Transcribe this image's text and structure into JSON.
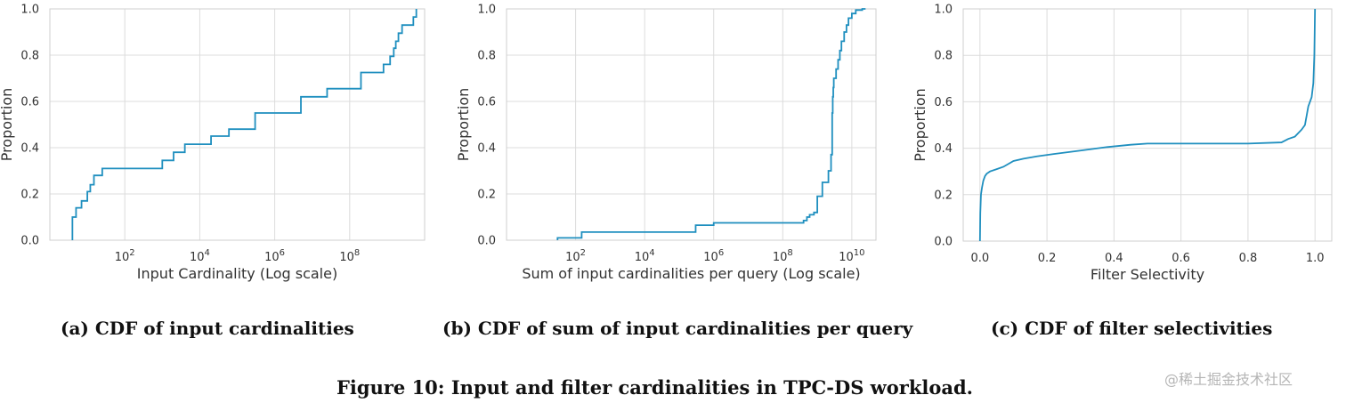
{
  "figure_caption": "Figure 10: Input and filter cardinalities in TPC-DS workload.",
  "watermark": "@稀土掘金技术社区",
  "style": {
    "line_color": "#1f8fbf",
    "grid": true
  },
  "chart_data": [
    {
      "type": "line",
      "step": "post",
      "caption": "(a) CDF of input cardinalities",
      "xlabel": "Input Cardinality (Log scale)",
      "ylabel": "Proportion",
      "xscale": "log",
      "xlim": [
        1,
        10000000000
      ],
      "ylim": [
        0,
        1
      ],
      "xticks": [
        {
          "value": 100,
          "base": "10",
          "exp": "2"
        },
        {
          "value": 10000,
          "base": "10",
          "exp": "4"
        },
        {
          "value": 1000000,
          "base": "10",
          "exp": "6"
        },
        {
          "value": 100000000,
          "base": "10",
          "exp": "8"
        }
      ],
      "yticks": [
        {
          "value": 0,
          "label": "0.0"
        },
        {
          "value": 0.2,
          "label": "0.2"
        },
        {
          "value": 0.4,
          "label": "0.4"
        },
        {
          "value": 0.6,
          "label": "0.6"
        },
        {
          "value": 0.8,
          "label": "0.8"
        },
        {
          "value": 1,
          "label": "1.0"
        }
      ],
      "series": [
        {
          "x": [
            4,
            5,
            7,
            10,
            12,
            15,
            25,
            60,
            1000,
            2000,
            4000,
            20000,
            60000,
            300000,
            5000000,
            25000000,
            200000000,
            800000000,
            1200000000,
            1500000000,
            1700000000,
            2000000000,
            2500000000,
            5000000000
          ],
          "y": [
            0.1,
            0.14,
            0.17,
            0.21,
            0.24,
            0.28,
            0.31,
            0.31,
            0.345,
            0.38,
            0.415,
            0.45,
            0.48,
            0.55,
            0.62,
            0.655,
            0.725,
            0.76,
            0.795,
            0.83,
            0.86,
            0.895,
            0.93,
            0.965
          ]
        }
      ],
      "x_end": 6000000000,
      "y_end": 1.0,
      "x_start": 4
    },
    {
      "type": "line",
      "step": "post",
      "caption": "(b) CDF of sum of input cardinalities per query",
      "xlabel": "Sum of input cardinalities per query (Log scale)",
      "ylabel": "Proportion",
      "xscale": "log",
      "xlim": [
        1,
        50000000000
      ],
      "ylim": [
        0,
        1
      ],
      "xticks": [
        {
          "value": 100,
          "base": "10",
          "exp": "2"
        },
        {
          "value": 10000,
          "base": "10",
          "exp": "4"
        },
        {
          "value": 1000000,
          "base": "10",
          "exp": "6"
        },
        {
          "value": 100000000,
          "base": "10",
          "exp": "8"
        },
        {
          "value": 10000000000,
          "base": "10",
          "exp": "10"
        }
      ],
      "yticks": [
        {
          "value": 0,
          "label": "0.0"
        },
        {
          "value": 0.2,
          "label": "0.2"
        },
        {
          "value": 0.4,
          "label": "0.4"
        },
        {
          "value": 0.6,
          "label": "0.6"
        },
        {
          "value": 0.8,
          "label": "0.8"
        },
        {
          "value": 1,
          "label": "1.0"
        }
      ],
      "series": [
        {
          "x": [
            30,
            150,
            300000,
            1000000,
            400000000,
            500000000,
            600000000,
            800000000,
            1000000000,
            1400000000,
            2100000000,
            2500000000,
            2700000000,
            2800000000,
            2900000000,
            3000000000,
            3500000000,
            4000000000,
            4500000000,
            5000000000,
            6000000000,
            7000000000,
            8000000000,
            10000000000,
            13000000000,
            20000000000
          ],
          "y": [
            0.01,
            0.035,
            0.065,
            0.075,
            0.085,
            0.1,
            0.11,
            0.12,
            0.19,
            0.25,
            0.3,
            0.37,
            0.55,
            0.62,
            0.66,
            0.7,
            0.74,
            0.78,
            0.82,
            0.86,
            0.9,
            0.93,
            0.96,
            0.98,
            0.995,
            1.0
          ]
        }
      ],
      "x_end": 25000000000,
      "y_end": 1.0,
      "x_start": 30
    },
    {
      "type": "line",
      "step": "none",
      "caption": "(c) CDF of filter selectivities",
      "xlabel": "Filter Selectivity",
      "ylabel": "Proportion",
      "xscale": "linear",
      "xlim": [
        -0.05,
        1.05
      ],
      "ylim": [
        0,
        1
      ],
      "xticks": [
        {
          "value": 0,
          "label": "0.0"
        },
        {
          "value": 0.2,
          "label": "0.2"
        },
        {
          "value": 0.4,
          "label": "0.4"
        },
        {
          "value": 0.6,
          "label": "0.6"
        },
        {
          "value": 0.8,
          "label": "0.8"
        },
        {
          "value": 1,
          "label": "1.0"
        }
      ],
      "yticks": [
        {
          "value": 0,
          "label": "0.0"
        },
        {
          "value": 0.2,
          "label": "0.2"
        },
        {
          "value": 0.4,
          "label": "0.4"
        },
        {
          "value": 0.6,
          "label": "0.6"
        },
        {
          "value": 0.8,
          "label": "0.8"
        },
        {
          "value": 1,
          "label": "1.0"
        }
      ],
      "series": [
        {
          "x": [
            0,
            0.001,
            0.003,
            0.006,
            0.01,
            0.015,
            0.02,
            0.03,
            0.05,
            0.07,
            0.1,
            0.13,
            0.17,
            0.22,
            0.3,
            0.38,
            0.45,
            0.5,
            0.6,
            0.7,
            0.8,
            0.9,
            0.92,
            0.94,
            0.96,
            0.97,
            0.98,
            0.985,
            0.99,
            0.995,
            0.998,
            1.0
          ],
          "y": [
            0,
            0.12,
            0.2,
            0.23,
            0.26,
            0.28,
            0.29,
            0.3,
            0.31,
            0.32,
            0.345,
            0.355,
            0.365,
            0.375,
            0.39,
            0.405,
            0.415,
            0.42,
            0.42,
            0.42,
            0.42,
            0.425,
            0.44,
            0.45,
            0.48,
            0.5,
            0.58,
            0.6,
            0.62,
            0.68,
            0.8,
            1.0
          ]
        }
      ]
    }
  ]
}
